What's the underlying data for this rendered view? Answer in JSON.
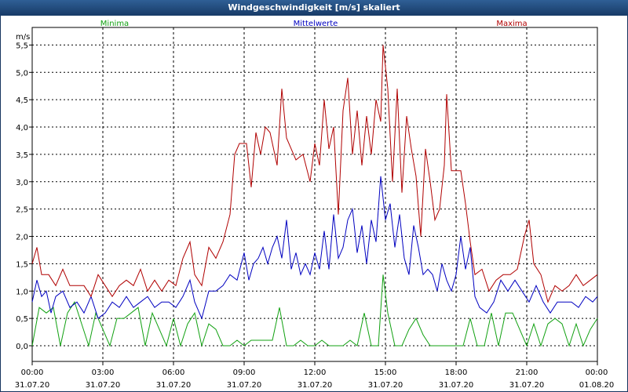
{
  "window": {
    "title": "Windgeschwindigkeit [m/s] skaliert"
  },
  "chart_data": {
    "type": "line",
    "title": "Windgeschwindigkeit [m/s] skaliert",
    "ylabel": "m/s",
    "ylim": [
      0,
      5.75
    ],
    "grid": true,
    "y_ticks": [
      "0,0",
      "0,5",
      "1,0",
      "1,5",
      "2,0",
      "2,5",
      "3,0",
      "3,5",
      "4,0",
      "4,5",
      "5,0",
      "5,5"
    ],
    "x_ticks": [
      {
        "time": "00:00",
        "date": "31.07.20"
      },
      {
        "time": "03:00",
        "date": "31.07.20"
      },
      {
        "time": "06:00",
        "date": "31.07.20"
      },
      {
        "time": "09:00",
        "date": "31.07.20"
      },
      {
        "time": "12:00",
        "date": "31.07.20"
      },
      {
        "time": "15:00",
        "date": "31.07.20"
      },
      {
        "time": "18:00",
        "date": "31.07.20"
      },
      {
        "time": "21:00",
        "date": "31.07.20"
      },
      {
        "time": "00:00",
        "date": "01.08.20"
      }
    ],
    "x_hours_range": [
      0,
      24
    ],
    "series": [
      {
        "name": "Minima",
        "color": "#10a010",
        "values": [
          [
            0,
            0.0
          ],
          [
            0.3,
            0.7
          ],
          [
            0.6,
            0.6
          ],
          [
            0.9,
            0.7
          ],
          [
            1.2,
            0.0
          ],
          [
            1.5,
            0.6
          ],
          [
            1.8,
            0.8
          ],
          [
            2.1,
            0.4
          ],
          [
            2.4,
            0.0
          ],
          [
            2.7,
            0.6
          ],
          [
            3.0,
            0.3
          ],
          [
            3.3,
            0.0
          ],
          [
            3.6,
            0.5
          ],
          [
            3.9,
            0.5
          ],
          [
            4.2,
            0.6
          ],
          [
            4.5,
            0.7
          ],
          [
            4.8,
            0.0
          ],
          [
            5.1,
            0.6
          ],
          [
            5.4,
            0.3
          ],
          [
            5.7,
            0.0
          ],
          [
            6.0,
            0.5
          ],
          [
            6.3,
            0.0
          ],
          [
            6.6,
            0.4
          ],
          [
            6.9,
            0.6
          ],
          [
            7.2,
            0.0
          ],
          [
            7.5,
            0.4
          ],
          [
            7.8,
            0.3
          ],
          [
            8.1,
            0.0
          ],
          [
            8.4,
            0.0
          ],
          [
            8.7,
            0.1
          ],
          [
            9.0,
            0.0
          ],
          [
            9.3,
            0.1
          ],
          [
            9.6,
            0.1
          ],
          [
            9.9,
            0.1
          ],
          [
            10.2,
            0.1
          ],
          [
            10.5,
            0.7
          ],
          [
            10.8,
            0.0
          ],
          [
            11.1,
            0.0
          ],
          [
            11.4,
            0.1
          ],
          [
            11.7,
            0.0
          ],
          [
            12.0,
            0.0
          ],
          [
            12.3,
            0.1
          ],
          [
            12.6,
            0.0
          ],
          [
            12.9,
            0.0
          ],
          [
            13.2,
            0.0
          ],
          [
            13.5,
            0.1
          ],
          [
            13.8,
            0.0
          ],
          [
            14.1,
            0.6
          ],
          [
            14.4,
            0.0
          ],
          [
            14.7,
            0.0
          ],
          [
            14.9,
            1.3
          ],
          [
            15.1,
            0.6
          ],
          [
            15.4,
            0.0
          ],
          [
            15.7,
            0.0
          ],
          [
            16.0,
            0.3
          ],
          [
            16.3,
            0.5
          ],
          [
            16.6,
            0.2
          ],
          [
            16.9,
            0.0
          ],
          [
            17.2,
            0.0
          ],
          [
            17.5,
            0.0
          ],
          [
            17.8,
            0.0
          ],
          [
            18.0,
            0.0
          ],
          [
            18.3,
            0.0
          ],
          [
            18.6,
            0.5
          ],
          [
            18.9,
            0.0
          ],
          [
            19.2,
            0.0
          ],
          [
            19.5,
            0.6
          ],
          [
            19.8,
            0.0
          ],
          [
            20.1,
            0.6
          ],
          [
            20.4,
            0.6
          ],
          [
            20.7,
            0.3
          ],
          [
            21.0,
            0.0
          ],
          [
            21.3,
            0.4
          ],
          [
            21.6,
            0.0
          ],
          [
            21.9,
            0.4
          ],
          [
            22.2,
            0.5
          ],
          [
            22.5,
            0.4
          ],
          [
            22.8,
            0.0
          ],
          [
            23.1,
            0.4
          ],
          [
            23.4,
            0.0
          ],
          [
            23.7,
            0.3
          ],
          [
            24.0,
            0.5
          ]
        ]
      },
      {
        "name": "Mittelwerte",
        "color": "#0000c0",
        "values": [
          [
            0,
            0.8
          ],
          [
            0.2,
            1.2
          ],
          [
            0.4,
            0.9
          ],
          [
            0.6,
            1.0
          ],
          [
            0.8,
            0.6
          ],
          [
            1.0,
            0.9
          ],
          [
            1.3,
            1.0
          ],
          [
            1.6,
            0.7
          ],
          [
            1.9,
            0.8
          ],
          [
            2.2,
            0.6
          ],
          [
            2.5,
            0.9
          ],
          [
            2.8,
            0.5
          ],
          [
            3.1,
            0.6
          ],
          [
            3.4,
            0.8
          ],
          [
            3.7,
            0.7
          ],
          [
            4.0,
            0.9
          ],
          [
            4.3,
            0.7
          ],
          [
            4.6,
            0.8
          ],
          [
            4.9,
            0.9
          ],
          [
            5.2,
            0.7
          ],
          [
            5.5,
            0.8
          ],
          [
            5.8,
            0.8
          ],
          [
            6.1,
            0.7
          ],
          [
            6.4,
            0.9
          ],
          [
            6.7,
            1.2
          ],
          [
            6.9,
            0.8
          ],
          [
            7.2,
            0.5
          ],
          [
            7.5,
            1.0
          ],
          [
            7.8,
            1.0
          ],
          [
            8.1,
            1.1
          ],
          [
            8.4,
            1.3
          ],
          [
            8.7,
            1.2
          ],
          [
            9.0,
            1.7
          ],
          [
            9.2,
            1.2
          ],
          [
            9.4,
            1.5
          ],
          [
            9.6,
            1.6
          ],
          [
            9.8,
            1.8
          ],
          [
            10.0,
            1.5
          ],
          [
            10.2,
            1.8
          ],
          [
            10.4,
            2.0
          ],
          [
            10.6,
            1.6
          ],
          [
            10.8,
            2.3
          ],
          [
            11.0,
            1.4
          ],
          [
            11.2,
            1.7
          ],
          [
            11.4,
            1.3
          ],
          [
            11.6,
            1.5
          ],
          [
            11.8,
            1.3
          ],
          [
            12.0,
            1.7
          ],
          [
            12.2,
            1.4
          ],
          [
            12.4,
            2.1
          ],
          [
            12.6,
            1.4
          ],
          [
            12.8,
            2.4
          ],
          [
            13.0,
            1.6
          ],
          [
            13.2,
            1.8
          ],
          [
            13.4,
            2.3
          ],
          [
            13.6,
            2.5
          ],
          [
            13.8,
            1.7
          ],
          [
            14.0,
            2.2
          ],
          [
            14.2,
            1.5
          ],
          [
            14.4,
            2.3
          ],
          [
            14.6,
            1.9
          ],
          [
            14.8,
            3.1
          ],
          [
            15.0,
            2.3
          ],
          [
            15.2,
            2.6
          ],
          [
            15.4,
            1.8
          ],
          [
            15.6,
            2.4
          ],
          [
            15.8,
            1.6
          ],
          [
            16.0,
            1.3
          ],
          [
            16.2,
            2.2
          ],
          [
            16.4,
            1.8
          ],
          [
            16.6,
            1.3
          ],
          [
            16.8,
            1.4
          ],
          [
            17.0,
            1.3
          ],
          [
            17.2,
            1.0
          ],
          [
            17.4,
            1.5
          ],
          [
            17.6,
            1.2
          ],
          [
            17.8,
            1.0
          ],
          [
            18.0,
            1.3
          ],
          [
            18.2,
            2.0
          ],
          [
            18.4,
            1.4
          ],
          [
            18.6,
            1.8
          ],
          [
            18.8,
            0.9
          ],
          [
            19.0,
            0.7
          ],
          [
            19.3,
            0.6
          ],
          [
            19.6,
            0.8
          ],
          [
            19.9,
            1.2
          ],
          [
            20.2,
            1.0
          ],
          [
            20.5,
            1.2
          ],
          [
            20.8,
            1.0
          ],
          [
            21.1,
            0.8
          ],
          [
            21.4,
            1.1
          ],
          [
            21.7,
            0.8
          ],
          [
            22.0,
            0.6
          ],
          [
            22.3,
            0.8
          ],
          [
            22.6,
            0.8
          ],
          [
            22.9,
            0.8
          ],
          [
            23.2,
            0.7
          ],
          [
            23.5,
            0.9
          ],
          [
            23.8,
            0.8
          ],
          [
            24.0,
            0.9
          ]
        ]
      },
      {
        "name": "Maxima",
        "color": "#b00000",
        "values": [
          [
            0,
            1.5
          ],
          [
            0.2,
            1.8
          ],
          [
            0.4,
            1.3
          ],
          [
            0.7,
            1.3
          ],
          [
            1.0,
            1.1
          ],
          [
            1.3,
            1.4
          ],
          [
            1.6,
            1.1
          ],
          [
            1.9,
            1.1
          ],
          [
            2.2,
            1.1
          ],
          [
            2.5,
            0.9
          ],
          [
            2.8,
            1.3
          ],
          [
            3.1,
            1.1
          ],
          [
            3.4,
            0.9
          ],
          [
            3.7,
            1.1
          ],
          [
            4.0,
            1.2
          ],
          [
            4.3,
            1.1
          ],
          [
            4.6,
            1.4
          ],
          [
            4.9,
            1.0
          ],
          [
            5.2,
            1.2
          ],
          [
            5.5,
            1.0
          ],
          [
            5.8,
            1.2
          ],
          [
            6.1,
            1.1
          ],
          [
            6.4,
            1.6
          ],
          [
            6.7,
            1.9
          ],
          [
            6.9,
            1.3
          ],
          [
            7.2,
            1.1
          ],
          [
            7.5,
            1.8
          ],
          [
            7.8,
            1.6
          ],
          [
            8.1,
            1.9
          ],
          [
            8.4,
            2.4
          ],
          [
            8.6,
            3.5
          ],
          [
            8.8,
            3.7
          ],
          [
            9.1,
            3.7
          ],
          [
            9.3,
            2.9
          ],
          [
            9.5,
            3.9
          ],
          [
            9.7,
            3.5
          ],
          [
            9.9,
            4.0
          ],
          [
            10.1,
            3.9
          ],
          [
            10.4,
            3.3
          ],
          [
            10.6,
            4.7
          ],
          [
            10.8,
            3.8
          ],
          [
            11.0,
            3.6
          ],
          [
            11.2,
            3.4
          ],
          [
            11.5,
            3.5
          ],
          [
            11.8,
            3.0
          ],
          [
            12.0,
            3.7
          ],
          [
            12.2,
            3.3
          ],
          [
            12.4,
            4.5
          ],
          [
            12.6,
            3.6
          ],
          [
            12.8,
            4.0
          ],
          [
            13.0,
            2.4
          ],
          [
            13.2,
            4.3
          ],
          [
            13.4,
            4.9
          ],
          [
            13.6,
            3.5
          ],
          [
            13.8,
            4.3
          ],
          [
            14.0,
            3.3
          ],
          [
            14.2,
            4.2
          ],
          [
            14.4,
            3.5
          ],
          [
            14.6,
            4.5
          ],
          [
            14.8,
            4.1
          ],
          [
            14.9,
            5.5
          ],
          [
            15.1,
            4.7
          ],
          [
            15.3,
            3.0
          ],
          [
            15.5,
            4.7
          ],
          [
            15.7,
            2.8
          ],
          [
            15.9,
            4.2
          ],
          [
            16.1,
            3.6
          ],
          [
            16.3,
            3.1
          ],
          [
            16.5,
            2.0
          ],
          [
            16.7,
            3.6
          ],
          [
            16.9,
            3.0
          ],
          [
            17.1,
            2.3
          ],
          [
            17.3,
            2.5
          ],
          [
            17.5,
            3.3
          ],
          [
            17.6,
            4.6
          ],
          [
            17.8,
            3.2
          ],
          [
            18.0,
            3.2
          ],
          [
            18.2,
            3.2
          ],
          [
            18.4,
            2.6
          ],
          [
            18.6,
            1.9
          ],
          [
            18.8,
            1.3
          ],
          [
            19.1,
            1.4
          ],
          [
            19.4,
            1.0
          ],
          [
            19.7,
            1.2
          ],
          [
            20.0,
            1.3
          ],
          [
            20.3,
            1.3
          ],
          [
            20.6,
            1.4
          ],
          [
            20.9,
            2.0
          ],
          [
            21.1,
            2.3
          ],
          [
            21.3,
            1.5
          ],
          [
            21.6,
            1.3
          ],
          [
            21.9,
            0.8
          ],
          [
            22.2,
            1.1
          ],
          [
            22.5,
            1.0
          ],
          [
            22.8,
            1.1
          ],
          [
            23.1,
            1.3
          ],
          [
            23.4,
            1.1
          ],
          [
            23.7,
            1.2
          ],
          [
            24.0,
            1.3
          ]
        ]
      }
    ]
  }
}
